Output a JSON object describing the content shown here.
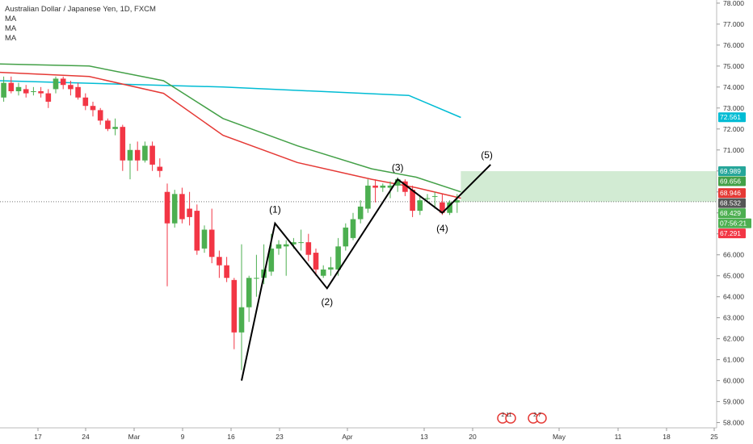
{
  "legend": {
    "title": "Australian Dollar / Japanese Yen, 1D, FXCM",
    "ma_lines": [
      "MA",
      "MA",
      "MA"
    ]
  },
  "chart_data": {
    "type": "candlestick",
    "title": "Australian Dollar / Japanese Yen, 1D, FXCM",
    "y_ticks": [
      "58.000",
      "59.000",
      "60.000",
      "61.000",
      "62.000",
      "63.000",
      "64.000",
      "65.000",
      "66.000",
      "67.000",
      "68.000",
      "69.000",
      "70.000",
      "71.000",
      "72.000",
      "73.000",
      "74.000",
      "75.000",
      "76.000",
      "77.000",
      "78.000"
    ],
    "ylim": [
      57.75,
      78.15
    ],
    "x_ticks": [
      "17",
      "24",
      "Mar",
      "9",
      "16",
      "23",
      "Apr",
      "13",
      "20",
      "May",
      "11",
      "18",
      "25"
    ],
    "candles": [
      {
        "o": 73.5,
        "h": 74.5,
        "l": 73.3,
        "c": 74.2
      },
      {
        "o": 74.2,
        "h": 74.5,
        "l": 73.7,
        "c": 73.8
      },
      {
        "o": 73.8,
        "h": 74.2,
        "l": 73.6,
        "c": 74.0
      },
      {
        "o": 73.9,
        "h": 74.1,
        "l": 73.5,
        "c": 73.7
      },
      {
        "o": 73.8,
        "h": 74.0,
        "l": 73.6,
        "c": 73.8
      },
      {
        "o": 73.8,
        "h": 74.0,
        "l": 73.5,
        "c": 73.7
      },
      {
        "o": 73.7,
        "h": 73.9,
        "l": 73.0,
        "c": 73.3
      },
      {
        "o": 73.9,
        "h": 74.5,
        "l": 73.7,
        "c": 74.4
      },
      {
        "o": 74.4,
        "h": 74.5,
        "l": 73.9,
        "c": 74.1
      },
      {
        "o": 74.1,
        "h": 74.3,
        "l": 73.6,
        "c": 73.9
      },
      {
        "o": 74.0,
        "h": 74.2,
        "l": 73.4,
        "c": 73.5
      },
      {
        "o": 73.5,
        "h": 73.7,
        "l": 72.9,
        "c": 73.1
      },
      {
        "o": 73.1,
        "h": 73.3,
        "l": 72.6,
        "c": 72.9
      },
      {
        "o": 72.9,
        "h": 73.0,
        "l": 72.2,
        "c": 72.4
      },
      {
        "o": 72.4,
        "h": 72.5,
        "l": 71.9,
        "c": 72.0
      },
      {
        "o": 72.0,
        "h": 72.5,
        "l": 71.7,
        "c": 72.1
      },
      {
        "o": 72.1,
        "h": 72.2,
        "l": 70.0,
        "c": 70.5
      },
      {
        "o": 70.5,
        "h": 71.3,
        "l": 69.6,
        "c": 71.0
      },
      {
        "o": 71.0,
        "h": 71.4,
        "l": 70.0,
        "c": 70.5
      },
      {
        "o": 70.5,
        "h": 71.4,
        "l": 70.4,
        "c": 71.2
      },
      {
        "o": 71.2,
        "h": 71.4,
        "l": 70.0,
        "c": 70.3
      },
      {
        "o": 70.2,
        "h": 70.6,
        "l": 69.7,
        "c": 70.0
      },
      {
        "o": 69.0,
        "h": 69.4,
        "l": 64.5,
        "c": 67.5
      },
      {
        "o": 67.5,
        "h": 69.1,
        "l": 67.3,
        "c": 68.9
      },
      {
        "o": 68.9,
        "h": 69.2,
        "l": 67.5,
        "c": 67.7
      },
      {
        "o": 68.2,
        "h": 69.0,
        "l": 67.4,
        "c": 67.8
      },
      {
        "o": 68.1,
        "h": 68.4,
        "l": 66.0,
        "c": 66.2
      },
      {
        "o": 66.3,
        "h": 67.4,
        "l": 66.1,
        "c": 67.2
      },
      {
        "o": 67.2,
        "h": 68.2,
        "l": 65.6,
        "c": 65.9
      },
      {
        "o": 65.9,
        "h": 66.2,
        "l": 64.9,
        "c": 65.5
      },
      {
        "o": 65.5,
        "h": 65.9,
        "l": 64.7,
        "c": 64.9
      },
      {
        "o": 64.8,
        "h": 64.9,
        "l": 61.5,
        "c": 62.3
      },
      {
        "o": 62.3,
        "h": 66.5,
        "l": 60.5,
        "c": 63.5
      },
      {
        "o": 63.5,
        "h": 65.0,
        "l": 62.8,
        "c": 64.9
      },
      {
        "o": 64.9,
        "h": 66.0,
        "l": 64.0,
        "c": 64.9
      },
      {
        "o": 64.9,
        "h": 66.5,
        "l": 64.6,
        "c": 65.3
      },
      {
        "o": 65.2,
        "h": 67.0,
        "l": 65.0,
        "c": 66.3
      },
      {
        "o": 66.3,
        "h": 66.7,
        "l": 66.0,
        "c": 66.5
      },
      {
        "o": 66.4,
        "h": 66.7,
        "l": 65.0,
        "c": 66.5
      },
      {
        "o": 66.5,
        "h": 66.8,
        "l": 66.3,
        "c": 66.6
      },
      {
        "o": 66.6,
        "h": 67.2,
        "l": 66.2,
        "c": 66.6
      },
      {
        "o": 66.6,
        "h": 67.0,
        "l": 65.7,
        "c": 66.0
      },
      {
        "o": 66.1,
        "h": 66.3,
        "l": 65.0,
        "c": 65.3
      },
      {
        "o": 65.0,
        "h": 65.5,
        "l": 64.9,
        "c": 65.3
      },
      {
        "o": 65.3,
        "h": 65.9,
        "l": 65.0,
        "c": 65.4
      },
      {
        "o": 65.3,
        "h": 66.8,
        "l": 65.0,
        "c": 66.4
      },
      {
        "o": 66.4,
        "h": 67.5,
        "l": 66.2,
        "c": 67.3
      },
      {
        "o": 66.8,
        "h": 68.0,
        "l": 66.7,
        "c": 67.7
      },
      {
        "o": 67.7,
        "h": 68.6,
        "l": 67.5,
        "c": 68.3
      },
      {
        "o": 68.2,
        "h": 69.6,
        "l": 68.0,
        "c": 69.3
      },
      {
        "o": 69.3,
        "h": 69.6,
        "l": 68.5,
        "c": 69.2
      },
      {
        "o": 69.2,
        "h": 69.4,
        "l": 69.0,
        "c": 69.3
      },
      {
        "o": 69.2,
        "h": 69.5,
        "l": 68.7,
        "c": 69.3
      },
      {
        "o": 69.3,
        "h": 69.7,
        "l": 69.0,
        "c": 69.6
      },
      {
        "o": 69.5,
        "h": 69.6,
        "l": 68.8,
        "c": 69.0
      },
      {
        "o": 69.1,
        "h": 69.3,
        "l": 67.8,
        "c": 68.1
      },
      {
        "o": 68.1,
        "h": 68.8,
        "l": 67.9,
        "c": 68.6
      },
      {
        "o": 68.7,
        "h": 68.9,
        "l": 68.6,
        "c": 68.7
      },
      {
        "o": 68.8,
        "h": 69.0,
        "l": 68.2,
        "c": 68.8
      },
      {
        "o": 68.5,
        "h": 68.9,
        "l": 67.9,
        "c": 68.0
      },
      {
        "o": 68.0,
        "h": 68.6,
        "l": 67.9,
        "c": 68.5
      },
      {
        "o": 68.5,
        "h": 68.9,
        "l": 68.0,
        "c": 68.6
      }
    ],
    "series": [
      {
        "name": "MA",
        "color": "#00bcd4",
        "points": [
          [
            0,
            74.3
          ],
          [
            30,
            74.0
          ],
          [
            55,
            73.6
          ],
          [
            62,
            72.55
          ]
        ]
      },
      {
        "name": "MA",
        "color": "#43a047",
        "points": [
          [
            0,
            75.1
          ],
          [
            12,
            75.0
          ],
          [
            22,
            74.3
          ],
          [
            30,
            72.5
          ],
          [
            40,
            71.2
          ],
          [
            50,
            70.1
          ],
          [
            56,
            69.7
          ],
          [
            62,
            69.0
          ]
        ]
      },
      {
        "name": "MA",
        "color": "#e53935",
        "points": [
          [
            0,
            74.7
          ],
          [
            12,
            74.5
          ],
          [
            22,
            73.7
          ],
          [
            30,
            71.7
          ],
          [
            40,
            70.4
          ],
          [
            50,
            69.6
          ],
          [
            56,
            69.2
          ],
          [
            62,
            68.7
          ]
        ]
      }
    ],
    "wave_path": [
      [
        32.5,
        60.0
      ],
      [
        37,
        67.5
      ],
      [
        44,
        64.4
      ],
      [
        53.5,
        69.6
      ],
      [
        59.5,
        68.0
      ],
      [
        66,
        70.3
      ]
    ],
    "wave_labels": [
      {
        "text": "(1)",
        "x": 37,
        "y": 68.0
      },
      {
        "text": "(2)",
        "x": 44,
        "y": 63.6
      },
      {
        "text": "(3)",
        "x": 53.5,
        "y": 70.0
      },
      {
        "text": "(4)",
        "x": 59.5,
        "y": 67.1
      },
      {
        "text": "(5)",
        "x": 65.5,
        "y": 70.6
      }
    ],
    "current_price_line": 68.532,
    "target_zone": {
      "from": 68.532,
      "to": 69.989,
      "x_start": 62
    },
    "stop_zone": {
      "from": 67.291,
      "to": 68.532,
      "x_start": 62
    },
    "price_badges": [
      {
        "text": "72.561",
        "value": 72.561,
        "color": "#00bcd4"
      },
      {
        "text": "69.989",
        "value": 69.989,
        "color": "#26a69a"
      },
      {
        "text": "69.656",
        "value": 69.656,
        "color": "#43a047"
      },
      {
        "text": "68.946",
        "value": 68.946,
        "color": "#e53935"
      },
      {
        "text": "68.532",
        "value": 68.532,
        "color": "#555555"
      },
      {
        "text": "68.429",
        "value": 68.429,
        "color": "#4caf50"
      },
      {
        "text": "07:56:21",
        "value": 68.0,
        "color": "#4caf50"
      },
      {
        "text": "67.291",
        "value": 67.291,
        "color": "#f23645"
      }
    ],
    "event_icons": [
      "2 11",
      "2 7"
    ]
  }
}
